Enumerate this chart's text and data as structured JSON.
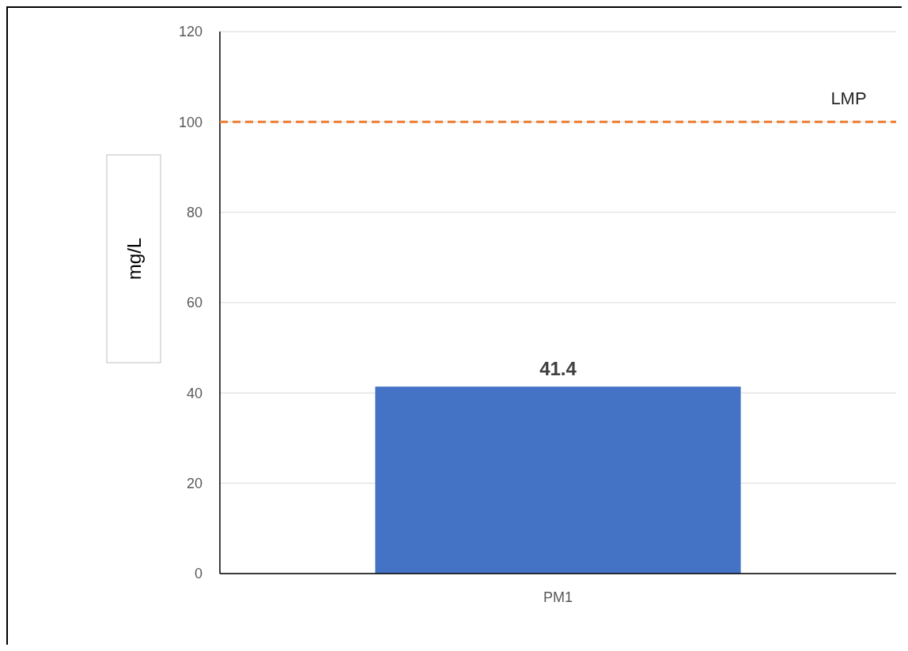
{
  "chart_data": {
    "type": "bar",
    "categories": [
      "PM1"
    ],
    "values": [
      41.4
    ],
    "color": "#4472c4",
    "ylabel": "mg/L",
    "ylim": [
      0,
      120
    ],
    "yticks": [
      0,
      20,
      40,
      60,
      80,
      100,
      120
    ],
    "grid": "y",
    "data_labels": true,
    "ref_lines": [
      {
        "axis": "y",
        "value": 100,
        "label": "LMP",
        "color": "#ed7d31",
        "line_style": "dashed"
      }
    ]
  }
}
